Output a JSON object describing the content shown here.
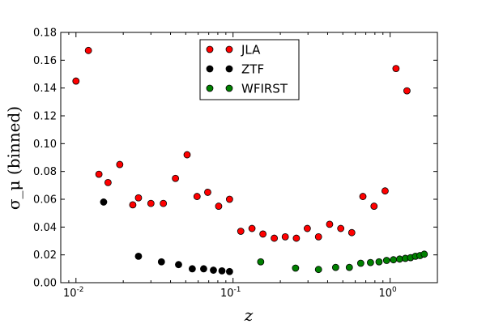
{
  "chart_data": {
    "type": "scatter",
    "xscale": "log",
    "xlim": [
      0.008,
      2.0
    ],
    "ylim": [
      0.0,
      0.18
    ],
    "xlabel": "z",
    "ylabel": "σ_μ (binned)",
    "grid": false,
    "legend_position": "top-center",
    "x_ticks": [
      {
        "value": 0.01,
        "base": "10",
        "exp": "-2"
      },
      {
        "value": 0.1,
        "base": "10",
        "exp": "-1"
      },
      {
        "value": 1.0,
        "base": "10",
        "exp": "0"
      }
    ],
    "y_ticks": [
      {
        "value": 0.0,
        "label": "0.00"
      },
      {
        "value": 0.02,
        "label": "0.02"
      },
      {
        "value": 0.04,
        "label": "0.04"
      },
      {
        "value": 0.06,
        "label": "0.06"
      },
      {
        "value": 0.08,
        "label": "0.08"
      },
      {
        "value": 0.1,
        "label": "0.10"
      },
      {
        "value": 0.12,
        "label": "0.12"
      },
      {
        "value": 0.14,
        "label": "0.14"
      },
      {
        "value": 0.16,
        "label": "0.16"
      },
      {
        "value": 0.18,
        "label": "0.18"
      }
    ],
    "series": [
      {
        "name": "JLA",
        "color": "#ff0000",
        "points": [
          [
            0.01,
            0.145
          ],
          [
            0.012,
            0.167
          ],
          [
            0.014,
            0.078
          ],
          [
            0.016,
            0.072
          ],
          [
            0.019,
            0.085
          ],
          [
            0.023,
            0.056
          ],
          [
            0.025,
            0.061
          ],
          [
            0.03,
            0.057
          ],
          [
            0.036,
            0.057
          ],
          [
            0.043,
            0.075
          ],
          [
            0.051,
            0.092
          ],
          [
            0.059,
            0.062
          ],
          [
            0.069,
            0.065
          ],
          [
            0.081,
            0.055
          ],
          [
            0.095,
            0.06
          ],
          [
            0.112,
            0.037
          ],
          [
            0.132,
            0.039
          ],
          [
            0.155,
            0.035
          ],
          [
            0.183,
            0.032
          ],
          [
            0.215,
            0.033
          ],
          [
            0.253,
            0.032
          ],
          [
            0.297,
            0.039
          ],
          [
            0.35,
            0.033
          ],
          [
            0.412,
            0.042
          ],
          [
            0.485,
            0.039
          ],
          [
            0.57,
            0.036
          ],
          [
            0.671,
            0.062
          ],
          [
            0.79,
            0.055
          ],
          [
            0.929,
            0.066
          ],
          [
            1.09,
            0.154
          ],
          [
            1.28,
            0.138
          ]
        ]
      },
      {
        "name": "ZTF",
        "color": "#000000",
        "points": [
          [
            0.015,
            0.058
          ],
          [
            0.025,
            0.019
          ],
          [
            0.035,
            0.015
          ],
          [
            0.045,
            0.013
          ],
          [
            0.055,
            0.01
          ],
          [
            0.065,
            0.01
          ],
          [
            0.075,
            0.009
          ],
          [
            0.085,
            0.0085
          ],
          [
            0.095,
            0.008
          ]
        ]
      },
      {
        "name": "WFIRST",
        "color": "#008000",
        "points": [
          [
            0.15,
            0.015
          ],
          [
            0.25,
            0.0105
          ],
          [
            0.35,
            0.0095
          ],
          [
            0.45,
            0.011
          ],
          [
            0.55,
            0.011
          ],
          [
            0.65,
            0.014
          ],
          [
            0.75,
            0.0145
          ],
          [
            0.85,
            0.015
          ],
          [
            0.95,
            0.016
          ],
          [
            1.05,
            0.0165
          ],
          [
            1.15,
            0.017
          ],
          [
            1.25,
            0.0175
          ],
          [
            1.35,
            0.018
          ],
          [
            1.45,
            0.019
          ],
          [
            1.55,
            0.0195
          ],
          [
            1.65,
            0.0205
          ]
        ]
      }
    ]
  }
}
